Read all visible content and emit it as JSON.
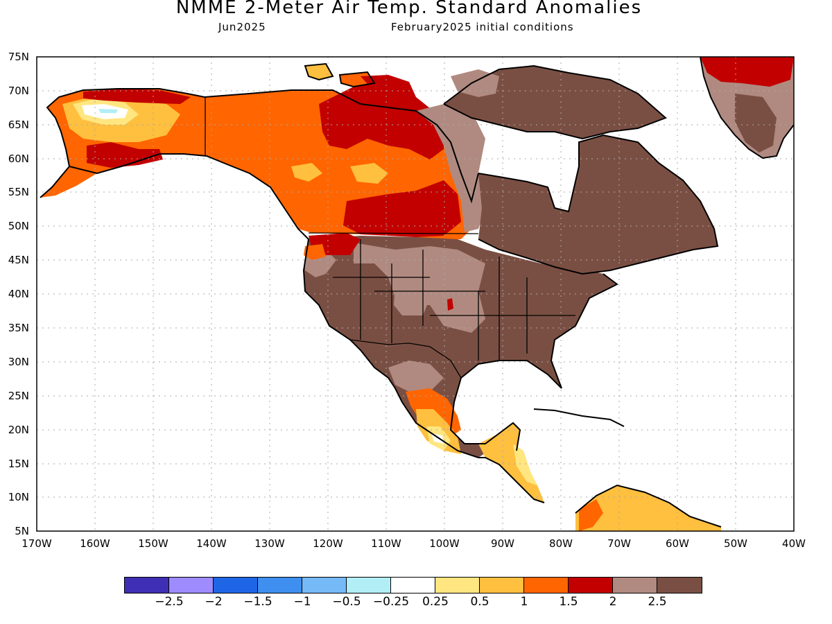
{
  "header": {
    "title": "NMME 2-Meter Air Temp. Standard Anomalies",
    "month": "Jun2025",
    "conditions": "February2025 initial conditions"
  },
  "axes": {
    "lat_labels": [
      "75N",
      "70N",
      "65N",
      "60N",
      "55N",
      "50N",
      "45N",
      "40N",
      "35N",
      "30N",
      "25N",
      "20N",
      "15N",
      "10N",
      "5N"
    ],
    "lon_labels": [
      "170W",
      "160W",
      "150W",
      "140W",
      "130W",
      "120W",
      "110W",
      "100W",
      "90W",
      "80W",
      "70W",
      "60W",
      "50W",
      "40W"
    ],
    "lat_range": [
      5,
      75
    ],
    "lon_range": [
      -170,
      -40
    ],
    "grid": "dotted every 5° latitude and 10° longitude"
  },
  "colorbar": {
    "colors": [
      "#3f2fb4",
      "#9e8cff",
      "#1f66e6",
      "#3e8ff0",
      "#76b9f7",
      "#b2eef6",
      "#ffffff",
      "#ffe680",
      "#ffbf3f",
      "#ff6500",
      "#c20000",
      "#b08a80",
      "#7a4f43"
    ],
    "labels": [
      "−2.5",
      "−2",
      "−1.5",
      "−1",
      "−0.5",
      "−0.25",
      "0.25",
      "0.5",
      "1",
      "1.5",
      "2",
      "2.5"
    ]
  },
  "regions": [
    {
      "name": "Alaska",
      "anomaly_class": "1 to 1.5, locally 0.25-1 and -0.5"
    },
    {
      "name": "Western Canada",
      "anomaly_class": "1 to 2"
    },
    {
      "name": "Eastern Canada",
      "anomaly_class": ">2.5"
    },
    {
      "name": "Contiguous US",
      "anomaly_class": "2 to >2.5"
    },
    {
      "name": "Pacific Northwest",
      "anomaly_class": "1.5 to 2"
    },
    {
      "name": "Southern Mexico",
      "anomaly_class": "0.25 to 1.5"
    },
    {
      "name": "Central America",
      "anomaly_class": "0.25 to 1"
    },
    {
      "name": "Northern South America",
      "anomaly_class": "0.5 to 1.5"
    },
    {
      "name": "Greenland",
      "anomaly_class": "1.5 to >2.5"
    }
  ]
}
